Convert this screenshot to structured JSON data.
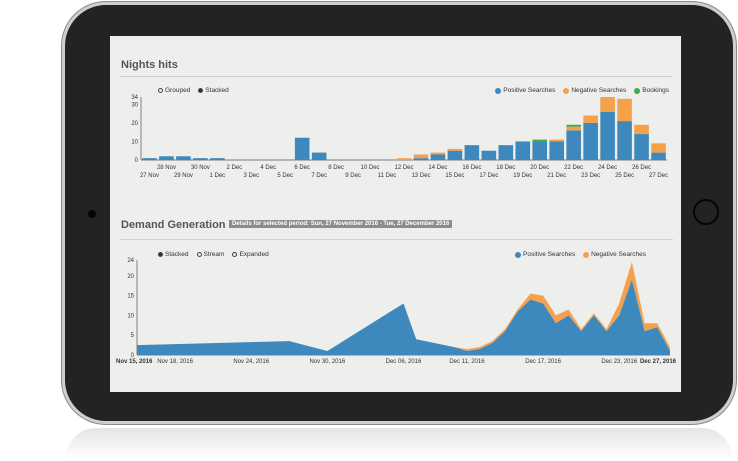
{
  "colors": {
    "positive": "#3d89bd",
    "negative": "#f5a14c",
    "bookings": "#44a748"
  },
  "chart_data": [
    {
      "type": "bar",
      "title": "Nights hits",
      "controls": {
        "options": [
          "Grouped",
          "Stacked"
        ],
        "selected": "Stacked"
      },
      "legend": {
        "entries": [
          "Positive Searches",
          "Negative Searches",
          "Bookings"
        ],
        "placement": "top-right"
      },
      "yticks": [
        "34",
        "30",
        "20",
        "10",
        "0"
      ],
      "ylim": [
        0,
        34
      ],
      "xticks_top": [
        "28 Nov",
        "30 Nov",
        "2 Dec",
        "4 Dec",
        "6 Dec",
        "8 Dec",
        "10 Dec",
        "12 Dec",
        "14 Dec",
        "16 Dec",
        "18 Dec",
        "20 Dec",
        "22 Dec",
        "24 Dec",
        "26 Dec"
      ],
      "xticks_bottom": [
        "27 Nov",
        "29 Nov",
        "1 Dec",
        "3 Dec",
        "5 Dec",
        "7 Dec",
        "9 Dec",
        "11 Dec",
        "13 Dec",
        "15 Dec",
        "17 Dec",
        "19 Dec",
        "21 Dec",
        "23 Dec",
        "25 Dec",
        "27 Dec"
      ],
      "categories": [
        "27 Nov",
        "28 Nov",
        "29 Nov",
        "30 Nov",
        "1 Dec",
        "2 Dec",
        "3 Dec",
        "4 Dec",
        "5 Dec",
        "6 Dec",
        "7 Dec",
        "8 Dec",
        "9 Dec",
        "10 Dec",
        "11 Dec",
        "12 Dec",
        "13 Dec",
        "14 Dec",
        "15 Dec",
        "16 Dec",
        "17 Dec",
        "18 Dec",
        "19 Dec",
        "20 Dec",
        "21 Dec",
        "22 Dec",
        "23 Dec",
        "24 Dec",
        "25 Dec",
        "26 Dec",
        "27 Dec"
      ],
      "series": [
        {
          "name": "Positive Searches",
          "values": [
            1,
            2,
            2,
            1,
            1,
            0,
            0,
            0,
            0,
            12,
            4,
            0,
            0,
            0,
            0,
            0,
            1,
            3,
            5,
            8,
            5,
            8,
            10,
            10,
            10,
            16,
            20,
            26,
            21,
            14,
            4
          ]
        },
        {
          "name": "Negative Searches",
          "values": [
            0,
            0,
            0,
            0,
            0,
            0,
            0,
            0,
            0,
            0,
            0,
            0,
            0,
            0,
            0,
            1,
            2,
            1,
            1,
            0,
            0,
            0,
            0,
            0,
            1,
            2,
            4,
            8,
            12,
            5,
            5
          ]
        },
        {
          "name": "Bookings",
          "values": [
            0,
            0,
            0,
            0,
            0,
            0,
            0,
            0,
            0,
            0,
            0,
            0,
            0,
            0,
            0,
            0,
            0,
            0,
            0,
            0,
            0,
            0,
            0,
            1,
            0,
            1,
            0,
            0,
            0,
            0,
            0
          ]
        }
      ]
    },
    {
      "type": "area",
      "title": "Demand Generation",
      "period_label": "Details for selected period: Sun, 27 November 2016 - Tue, 27 December 2016",
      "controls": {
        "options": [
          "Stacked",
          "Stream",
          "Expanded"
        ],
        "selected": "Stacked"
      },
      "legend": {
        "entries": [
          "Positive Searches",
          "Negative Searches"
        ],
        "placement": "top-right"
      },
      "yticks": [
        "24",
        "20",
        "15",
        "10",
        "5",
        "0"
      ],
      "ylim": [
        0,
        24
      ],
      "xlim": [
        "2016-11-15",
        "2016-12-27"
      ],
      "xticks": [
        "Nov 15, 2016",
        "Nov 18, 2016",
        "Nov 24, 2016",
        "Nov 30, 2016",
        "Dec 06, 2016",
        "Dec 11, 2016",
        "Dec 17, 2016",
        "Dec 23, 2016",
        "Dec 27, 2016"
      ],
      "x": [
        "2016-11-15",
        "2016-11-27",
        "2016-11-30",
        "2016-12-06",
        "2016-12-07",
        "2016-12-10",
        "2016-12-11",
        "2016-12-12",
        "2016-12-13",
        "2016-12-14",
        "2016-12-15",
        "2016-12-16",
        "2016-12-17",
        "2016-12-18",
        "2016-12-19",
        "2016-12-20",
        "2016-12-21",
        "2016-12-22",
        "2016-12-23",
        "2016-12-24",
        "2016-12-25",
        "2016-12-26",
        "2016-12-27"
      ],
      "series": [
        {
          "name": "Positive Searches",
          "values": [
            2.5,
            3.5,
            1,
            13,
            4,
            2,
            1,
            1.5,
            3,
            6,
            11,
            14,
            13,
            8,
            10,
            6,
            10,
            6,
            10,
            19,
            6,
            7,
            1
          ]
        },
        {
          "name": "Negative Searches",
          "values": [
            0,
            0,
            0,
            0,
            0,
            0,
            0.5,
            0.5,
            0.5,
            0.5,
            0.5,
            1.5,
            2,
            2,
            1.5,
            0.5,
            0.5,
            0.5,
            3,
            4.5,
            2,
            1,
            1
          ]
        }
      ]
    }
  ]
}
